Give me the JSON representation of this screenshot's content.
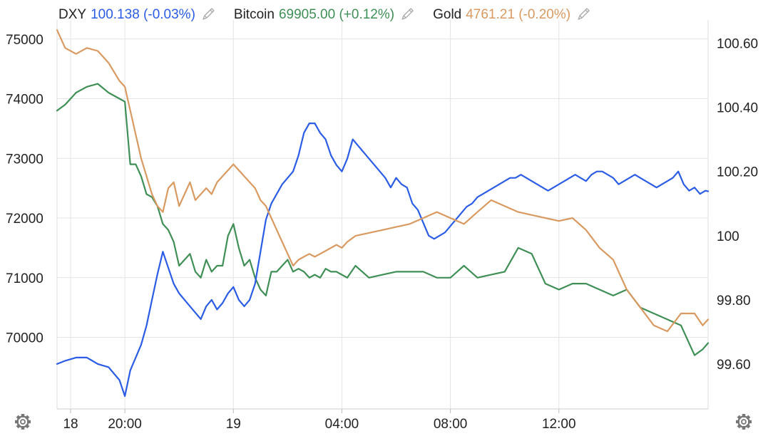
{
  "chart_data": {
    "type": "line",
    "title": "",
    "legend": {
      "placement": "top-left",
      "items": [
        {
          "name": "DXY",
          "value": "100.138",
          "change": "(-0.03%)",
          "color": "#2b5ce6",
          "icon": "pencil-icon"
        },
        {
          "name": "Bitcoin",
          "value": "69905.00",
          "change": "(+0.12%)",
          "color": "#3f8f56",
          "icon": "pencil-icon"
        },
        {
          "name": "Gold",
          "value": "4761.21",
          "change": "(-0.20%)",
          "color": "#d99a62",
          "icon": "pencil-icon"
        }
      ]
    },
    "x_ticks": [
      "18",
      "20:00",
      "19",
      "04:00",
      "08:00",
      "12:00"
    ],
    "x_tick_hours": [
      -6,
      -4,
      0,
      4,
      8,
      12
    ],
    "x_range_hours": [
      -6.5,
      17.5
    ],
    "y_left": {
      "ticks": [
        "75000",
        "74000",
        "73000",
        "72000",
        "71000",
        "70000"
      ],
      "tick_values": [
        75000,
        74000,
        73000,
        72000,
        71000,
        70000
      ],
      "range": [
        68800,
        75200
      ]
    },
    "y_right": {
      "ticks": [
        "100.60",
        "100.40",
        "100.20",
        "100",
        "99.80",
        "99.60"
      ],
      "tick_values": [
        100.6,
        100.4,
        100.2,
        100.0,
        99.8,
        99.6
      ],
      "range": [
        99.46,
        100.65
      ]
    },
    "grid": true,
    "series": [
      {
        "name": "Bitcoin",
        "axis": "left",
        "color": "#3f8f56",
        "x": [
          -6.5,
          -6.2,
          -5.8,
          -5.4,
          -5.0,
          -4.6,
          -4.2,
          -4.0,
          -3.8,
          -3.6,
          -3.4,
          -3.2,
          -3.0,
          -2.8,
          -2.6,
          -2.4,
          -2.2,
          -2.0,
          -1.8,
          -1.6,
          -1.4,
          -1.2,
          -1.0,
          -0.8,
          -0.6,
          -0.4,
          -0.2,
          0.0,
          0.2,
          0.4,
          0.6,
          0.8,
          1.0,
          1.2,
          1.4,
          1.6,
          1.8,
          2.0,
          2.2,
          2.4,
          2.6,
          2.8,
          3.0,
          3.2,
          3.4,
          3.6,
          3.8,
          4.0,
          4.2,
          4.5,
          5.0,
          5.5,
          6.0,
          6.5,
          7.0,
          7.5,
          8.0,
          8.5,
          9.0,
          9.5,
          10.0,
          10.5,
          11.0,
          11.5,
          12.0,
          12.5,
          13.0,
          13.5,
          14.0,
          14.5,
          15.0,
          15.5,
          16.0,
          16.5,
          17.0,
          17.3,
          17.5
        ],
        "y": [
          73800,
          73900,
          74100,
          74200,
          74250,
          74100,
          74000,
          73950,
          72900,
          72900,
          72700,
          72400,
          72350,
          72200,
          71900,
          71800,
          71600,
          71200,
          71300,
          71400,
          71100,
          71000,
          71300,
          71100,
          71200,
          71200,
          71700,
          71900,
          71500,
          71200,
          71300,
          71000,
          70800,
          70700,
          71100,
          71100,
          71200,
          71300,
          71100,
          71150,
          71100,
          71000,
          71050,
          71000,
          71150,
          71100,
          71100,
          71050,
          71000,
          71200,
          71000,
          71050,
          71100,
          71100,
          71100,
          71000,
          71000,
          71200,
          71000,
          71050,
          71100,
          71500,
          71400,
          70900,
          70800,
          70900,
          70900,
          70800,
          70700,
          70800,
          70500,
          70400,
          70300,
          70200,
          69700,
          69800,
          69905
        ]
      },
      {
        "name": "DXY",
        "axis": "right",
        "color": "#2b5ce6",
        "x": [
          -6.5,
          -6.2,
          -5.8,
          -5.4,
          -5.0,
          -4.6,
          -4.4,
          -4.2,
          -4.0,
          -3.8,
          -3.6,
          -3.4,
          -3.2,
          -3.0,
          -2.8,
          -2.6,
          -2.4,
          -2.2,
          -2.0,
          -1.8,
          -1.6,
          -1.4,
          -1.2,
          -1.0,
          -0.8,
          -0.6,
          -0.4,
          -0.2,
          0.0,
          0.2,
          0.4,
          0.6,
          0.8,
          1.0,
          1.2,
          1.4,
          1.6,
          1.8,
          2.0,
          2.2,
          2.4,
          2.6,
          2.8,
          3.0,
          3.2,
          3.4,
          3.6,
          3.8,
          4.0,
          4.2,
          4.4,
          4.6,
          4.8,
          5.0,
          5.2,
          5.4,
          5.6,
          5.8,
          6.0,
          6.2,
          6.4,
          6.6,
          6.8,
          7.0,
          7.2,
          7.4,
          7.6,
          7.8,
          8.0,
          8.2,
          8.4,
          8.6,
          8.8,
          9.0,
          9.2,
          9.4,
          9.6,
          9.8,
          10.0,
          10.2,
          10.4,
          10.6,
          10.8,
          11.0,
          11.2,
          11.4,
          11.6,
          11.8,
          12.0,
          12.2,
          12.4,
          12.6,
          12.8,
          13.0,
          13.2,
          13.4,
          13.6,
          13.8,
          14.0,
          14.2,
          14.4,
          14.6,
          14.8,
          15.0,
          15.2,
          15.4,
          15.6,
          15.8,
          16.0,
          16.2,
          16.4,
          16.6,
          16.8,
          17.0,
          17.2,
          17.4,
          17.5
        ],
        "y": [
          99.6,
          99.61,
          99.62,
          99.62,
          99.6,
          99.59,
          99.57,
          99.55,
          99.5,
          99.58,
          99.62,
          99.66,
          99.72,
          99.8,
          99.88,
          99.95,
          99.9,
          99.85,
          99.82,
          99.8,
          99.78,
          99.76,
          99.74,
          99.78,
          99.8,
          99.77,
          99.79,
          99.82,
          99.84,
          99.8,
          99.78,
          99.8,
          99.85,
          99.95,
          100.05,
          100.1,
          100.13,
          100.16,
          100.18,
          100.2,
          100.25,
          100.32,
          100.35,
          100.35,
          100.32,
          100.3,
          100.25,
          100.22,
          100.2,
          100.24,
          100.3,
          100.28,
          100.26,
          100.24,
          100.22,
          100.2,
          100.18,
          100.15,
          100.18,
          100.16,
          100.15,
          100.1,
          100.08,
          100.04,
          100.0,
          99.99,
          100.0,
          100.01,
          100.03,
          100.05,
          100.07,
          100.09,
          100.1,
          100.12,
          100.13,
          100.14,
          100.15,
          100.16,
          100.17,
          100.18,
          100.18,
          100.19,
          100.18,
          100.17,
          100.16,
          100.15,
          100.14,
          100.15,
          100.16,
          100.17,
          100.18,
          100.19,
          100.18,
          100.17,
          100.19,
          100.2,
          100.2,
          100.19,
          100.18,
          100.16,
          100.17,
          100.18,
          100.19,
          100.18,
          100.17,
          100.16,
          100.15,
          100.16,
          100.17,
          100.18,
          100.2,
          100.16,
          100.14,
          100.15,
          100.13,
          100.14,
          100.138
        ]
      },
      {
        "name": "Gold",
        "axis": "left",
        "color": "#d99a62",
        "x": [
          -6.5,
          -6.2,
          -5.8,
          -5.4,
          -5.0,
          -4.6,
          -4.2,
          -4.0,
          -3.8,
          -3.6,
          -3.4,
          -3.2,
          -3.0,
          -2.8,
          -2.6,
          -2.4,
          -2.2,
          -2.0,
          -1.8,
          -1.6,
          -1.4,
          -1.2,
          -1.0,
          -0.8,
          -0.6,
          -0.4,
          -0.2,
          0.0,
          0.2,
          0.4,
          0.6,
          0.8,
          1.0,
          1.2,
          1.4,
          1.6,
          1.8,
          2.0,
          2.2,
          2.4,
          2.6,
          2.8,
          3.0,
          3.2,
          3.4,
          3.6,
          3.8,
          4.0,
          4.2,
          4.5,
          5.0,
          5.5,
          6.0,
          6.5,
          7.0,
          7.5,
          8.0,
          8.5,
          9.0,
          9.5,
          10.0,
          10.5,
          11.0,
          11.5,
          12.0,
          12.5,
          13.0,
          13.5,
          14.0,
          14.5,
          15.0,
          15.5,
          16.0,
          16.5,
          17.0,
          17.3,
          17.5
        ],
        "y": [
          75150,
          74850,
          74750,
          74850,
          74800,
          74600,
          74300,
          74200,
          73800,
          73400,
          73000,
          72700,
          72400,
          72200,
          72100,
          72500,
          72600,
          72200,
          72400,
          72600,
          72300,
          72400,
          72500,
          72400,
          72600,
          72700,
          72800,
          72900,
          72800,
          72700,
          72600,
          72500,
          72300,
          72200,
          72000,
          71800,
          71600,
          71400,
          71200,
          71300,
          71350,
          71400,
          71350,
          71400,
          71450,
          71500,
          71550,
          71500,
          71600,
          71700,
          71750,
          71800,
          71850,
          71900,
          72000,
          72100,
          72000,
          71900,
          72100,
          72300,
          72200,
          72100,
          72050,
          72000,
          71950,
          72000,
          71800,
          71500,
          71300,
          70800,
          70500,
          70200,
          70100,
          70400,
          70400,
          70200,
          70300
        ]
      }
    ]
  },
  "footer": {
    "left_icon": "gear-icon",
    "right_icon": "gear-icon"
  }
}
